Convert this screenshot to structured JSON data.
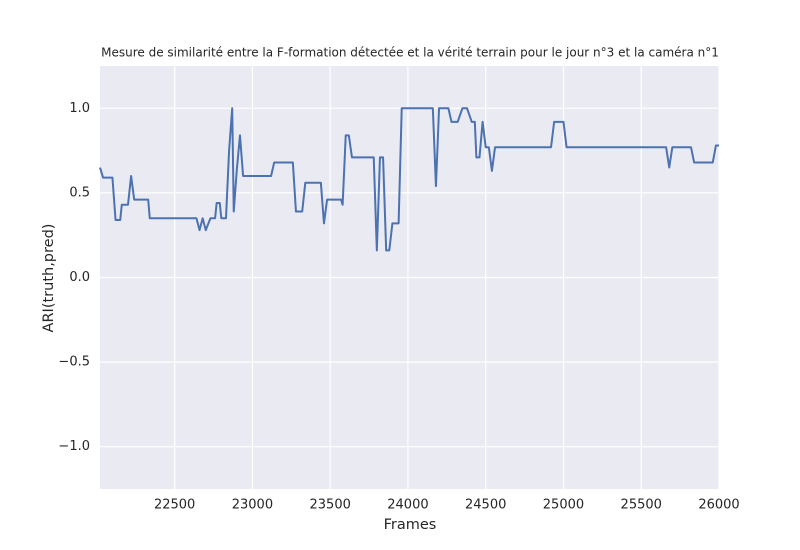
{
  "chart_data": {
    "type": "line",
    "title": "Mesure de similarité entre la F-formation détectée et la vérité terrain pour le jour n°3 et la caméra n°1",
    "x_label": "Frames",
    "y_label": "ARI(truth,pred)",
    "color": "#4c72b0",
    "grid": true,
    "xlim": [
      22020,
      26000
    ],
    "ylim": [
      -1.25,
      1.25
    ],
    "xticks": [
      22500,
      23000,
      23500,
      24000,
      24500,
      25000,
      25500,
      26000
    ],
    "yticks": [
      {
        "value": -1.0,
        "label": "−1.0"
      },
      {
        "value": -0.5,
        "label": "−0.5"
      },
      {
        "value": 0.0,
        "label": "0.0"
      },
      0.5,
      {
        "value": 1.0,
        "label": "1.0"
      }
    ],
    "x": [
      22020,
      22040,
      22100,
      22120,
      22150,
      22160,
      22200,
      22220,
      22240,
      22330,
      22340,
      22640,
      22660,
      22680,
      22700,
      22730,
      22760,
      22770,
      22790,
      22800,
      22830,
      22850,
      22870,
      22880,
      22900,
      22920,
      22940,
      23120,
      23140,
      23260,
      23280,
      23320,
      23340,
      23440,
      23460,
      23480,
      23570,
      23580,
      23600,
      23620,
      23640,
      23780,
      23800,
      23820,
      23840,
      23860,
      23880,
      23900,
      23940,
      23960,
      24160,
      24180,
      24200,
      24260,
      24280,
      24320,
      24350,
      24380,
      24410,
      24430,
      24440,
      24460,
      24480,
      24500,
      24520,
      24540,
      24560,
      24920,
      24940,
      25000,
      25020,
      25660,
      25680,
      25700,
      25820,
      25840,
      25960,
      25980,
      26000
    ],
    "values": [
      0.65,
      0.59,
      0.59,
      0.34,
      0.34,
      0.43,
      0.43,
      0.6,
      0.46,
      0.46,
      0.35,
      0.35,
      0.28,
      0.35,
      0.28,
      0.35,
      0.35,
      0.44,
      0.44,
      0.35,
      0.35,
      0.75,
      1.0,
      0.39,
      0.64,
      0.84,
      0.6,
      0.6,
      0.68,
      0.68,
      0.39,
      0.39,
      0.56,
      0.56,
      0.32,
      0.46,
      0.46,
      0.43,
      0.84,
      0.84,
      0.71,
      0.71,
      0.16,
      0.71,
      0.71,
      0.16,
      0.16,
      0.32,
      0.32,
      1.0,
      1.0,
      0.54,
      1.0,
      1.0,
      0.92,
      0.92,
      1.0,
      1.0,
      0.92,
      0.92,
      0.71,
      0.71,
      0.92,
      0.77,
      0.77,
      0.63,
      0.77,
      0.77,
      0.92,
      0.92,
      0.77,
      0.77,
      0.65,
      0.77,
      0.77,
      0.68,
      0.68,
      0.78,
      0.78
    ]
  }
}
